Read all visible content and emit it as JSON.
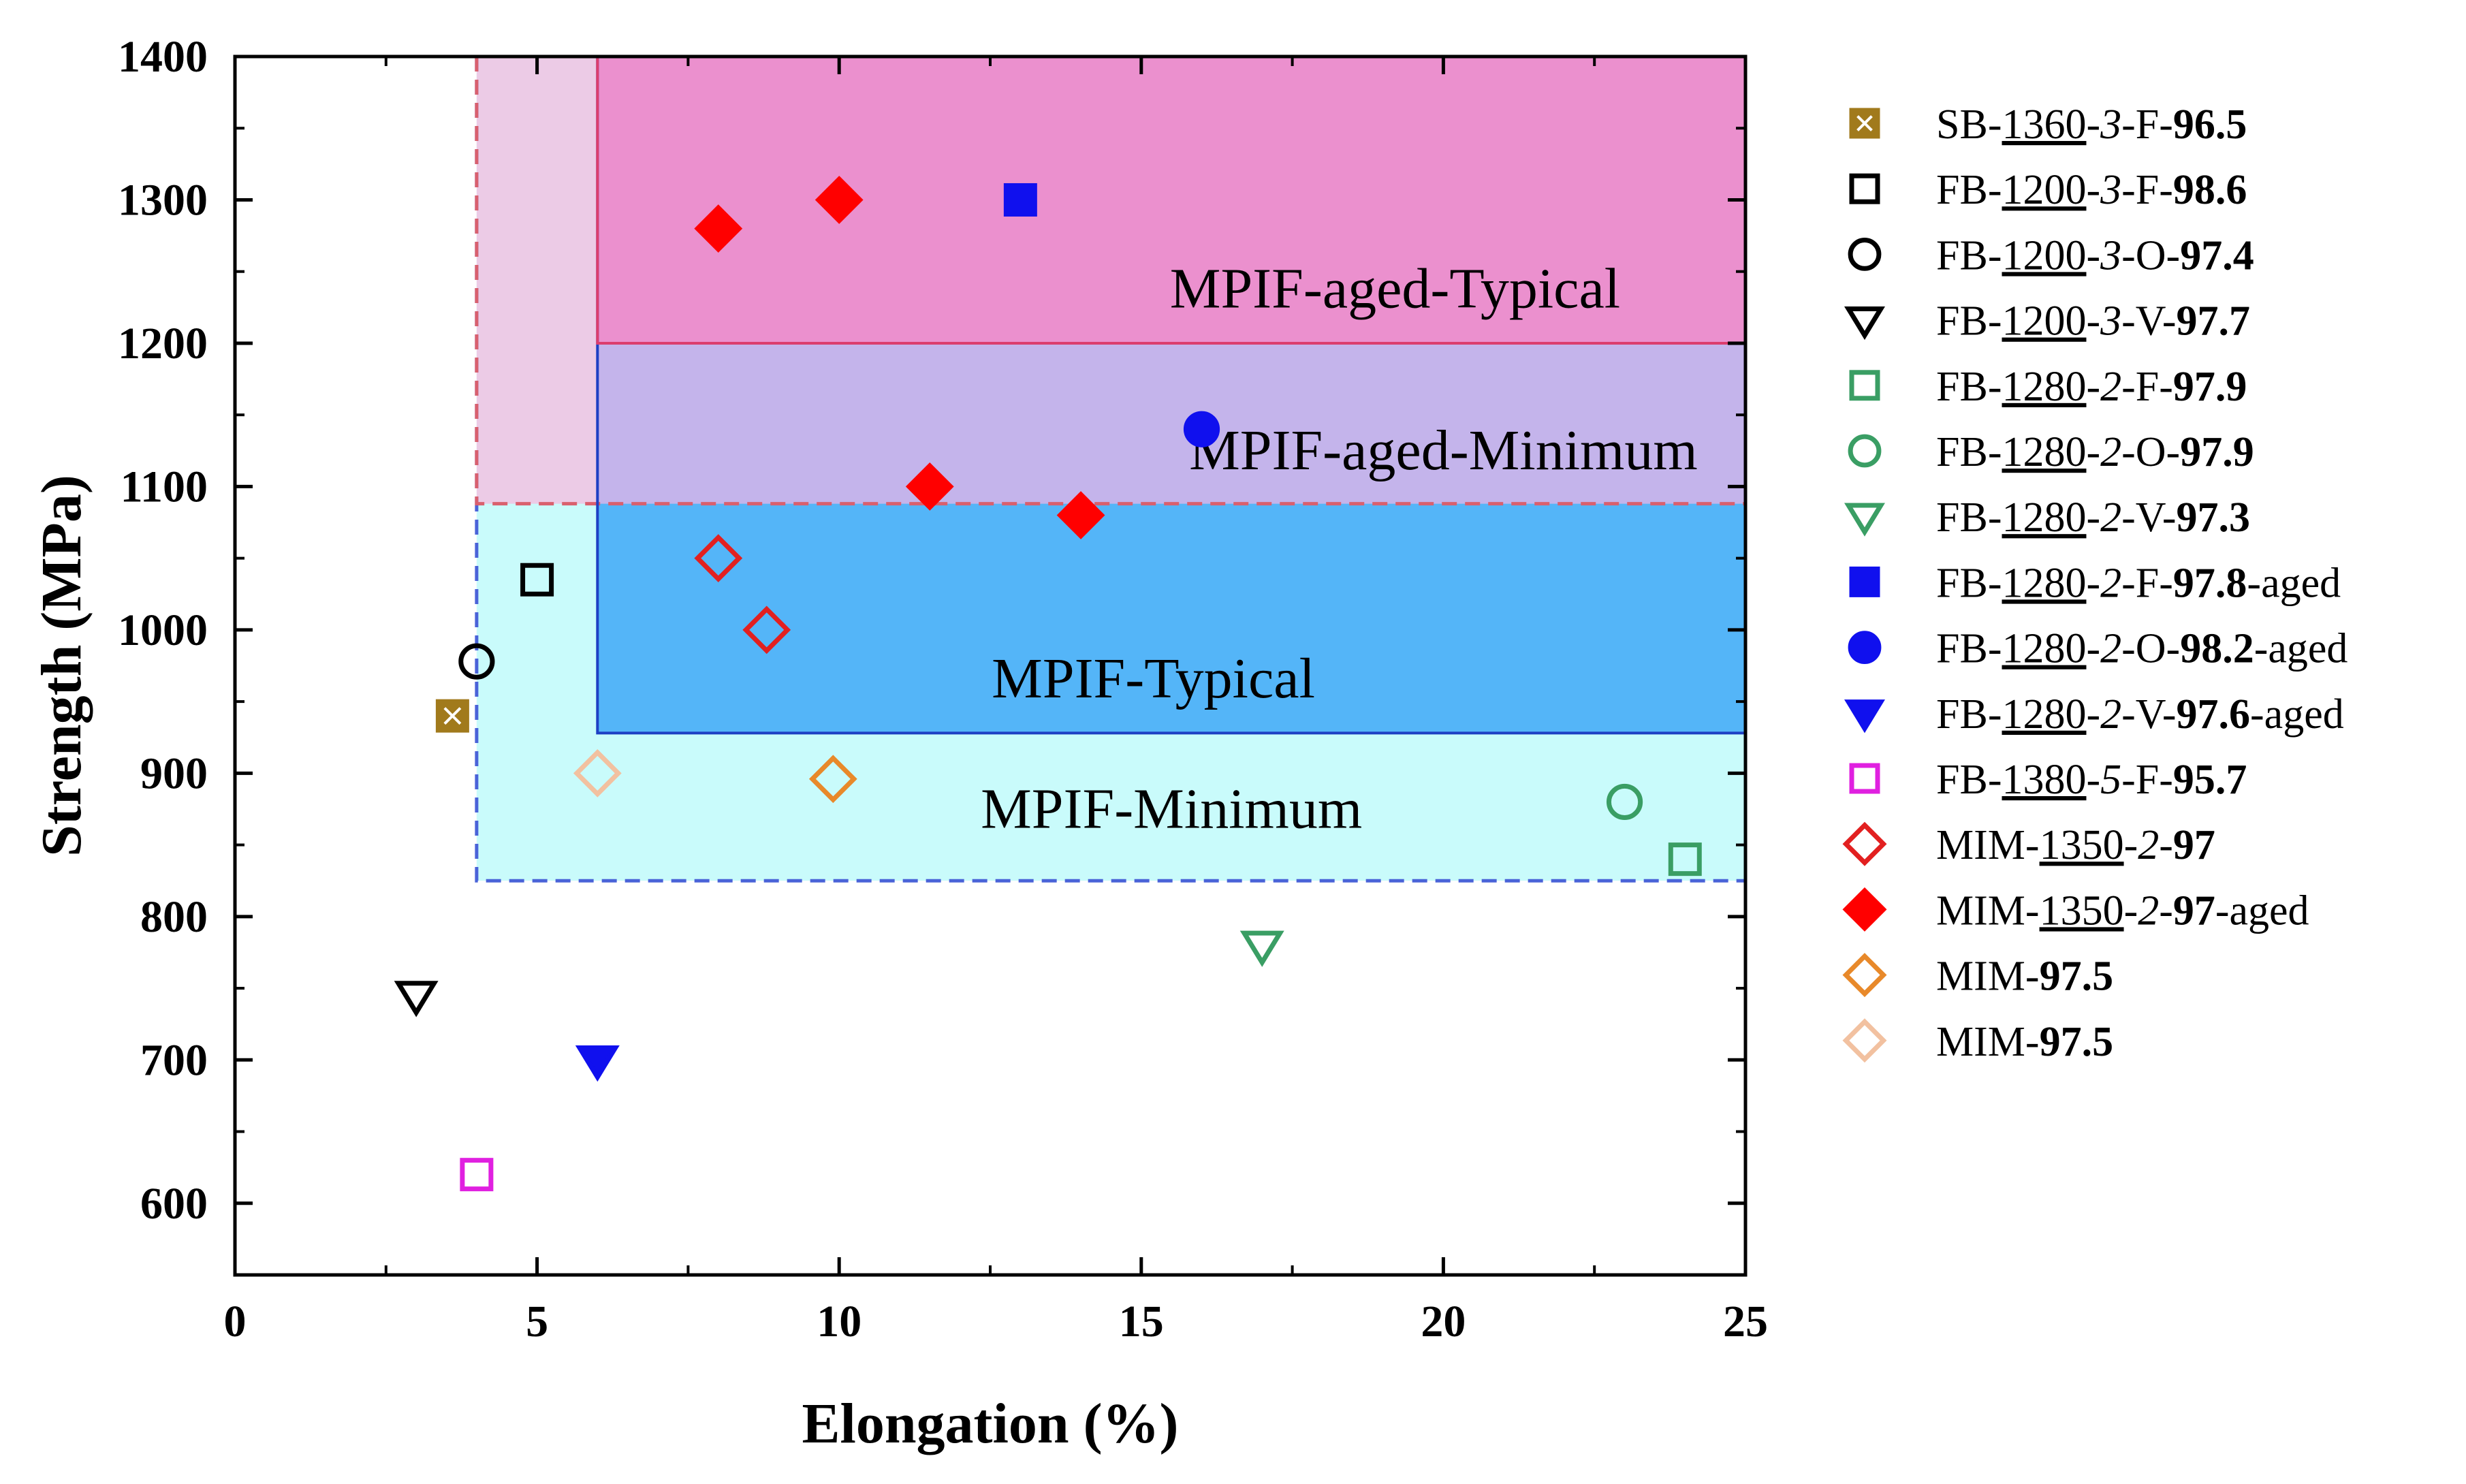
{
  "chart_data": {
    "type": "scatter",
    "xlabel": "Elongation (%)",
    "ylabel": "Strength (MPa)",
    "xlim": [
      0,
      25
    ],
    "ylim": [
      550,
      1400
    ],
    "xticks": [
      0,
      5,
      10,
      15,
      20,
      25
    ],
    "yticks": [
      600,
      700,
      800,
      900,
      1000,
      1100,
      1200,
      1300,
      1400
    ],
    "regions": [
      {
        "name": "MPIF-Minimum",
        "x": [
          4,
          25
        ],
        "y": [
          825,
          1400
        ],
        "fill": "#c9fbfb",
        "stroke": "#4a63d8",
        "dashed": true,
        "label_at": [
          15.5,
          862
        ]
      },
      {
        "name": "MPIF-aged-Minimum",
        "x": [
          4,
          25
        ],
        "y": [
          1088,
          1400
        ],
        "fill": "#eccbe6",
        "stroke": "#d9606e",
        "dashed": true,
        "label_at": [
          20,
          1112
        ]
      },
      {
        "name": "MPIF-Typical",
        "x": [
          6,
          25
        ],
        "y": [
          928,
          1400
        ],
        "fill": "#54b5f8",
        "stroke": "#1d3fc4",
        "dashed": false,
        "label_at": [
          15.2,
          953
        ]
      },
      {
        "name": "MPIF-aged-Typical",
        "x": [
          6,
          25
        ],
        "y": [
          1200,
          1400
        ],
        "fill": "#eb90ce",
        "stroke": "#dc3d6e",
        "dashed": false,
        "label_at": [
          19.2,
          1225
        ]
      }
    ],
    "overlap_fill": "#c4b4eb",
    "series": [
      {
        "name": [
          "SB-",
          "1360",
          "-",
          "3",
          "-F-",
          "96.5",
          ""
        ],
        "marker": "square-x",
        "color": "#a17a1c",
        "filled": true,
        "points": [
          [
            3.6,
            940
          ]
        ]
      },
      {
        "name": [
          "FB-",
          "1200",
          "-",
          "3",
          "-F-",
          "98.6",
          ""
        ],
        "marker": "square",
        "color": "#000000",
        "filled": false,
        "points": [
          [
            5,
            1035
          ]
        ]
      },
      {
        "name": [
          "FB-",
          "1200",
          "-",
          "3",
          "-O-",
          "97.4",
          ""
        ],
        "marker": "circle",
        "color": "#000000",
        "filled": false,
        "points": [
          [
            4,
            978
          ]
        ]
      },
      {
        "name": [
          "FB-",
          "1200",
          "-",
          "3",
          "-V-",
          "97.7",
          ""
        ],
        "marker": "triangle-down",
        "color": "#000000",
        "filled": false,
        "points": [
          [
            3,
            745
          ]
        ]
      },
      {
        "name": [
          "FB-",
          "1280",
          "-",
          "2",
          "-F-",
          "97.9",
          ""
        ],
        "marker": "square",
        "color": "#3a9e64",
        "filled": false,
        "points": [
          [
            24,
            840
          ]
        ]
      },
      {
        "name": [
          "FB-",
          "1280",
          "-",
          "2",
          "-O-",
          "97.9",
          ""
        ],
        "marker": "circle",
        "color": "#3a9e64",
        "filled": false,
        "points": [
          [
            23,
            880
          ]
        ]
      },
      {
        "name": [
          "FB-",
          "1280",
          "-",
          "2",
          "-V-",
          "97.3",
          ""
        ],
        "marker": "triangle-down",
        "color": "#3a9e64",
        "filled": false,
        "points": [
          [
            17,
            780
          ]
        ]
      },
      {
        "name": [
          "FB-",
          "1280",
          "-",
          "2",
          "-F-",
          "97.8",
          "-aged"
        ],
        "marker": "square",
        "color": "#1010ee",
        "filled": true,
        "points": [
          [
            13,
            1300
          ]
        ]
      },
      {
        "name": [
          "FB-",
          "1280",
          "-",
          "2",
          "-O-",
          "98.2",
          "-aged"
        ],
        "marker": "circle",
        "color": "#1010ee",
        "filled": true,
        "points": [
          [
            16,
            1140
          ]
        ]
      },
      {
        "name": [
          "FB-",
          "1280",
          "-",
          "2",
          "-V-",
          "97.6",
          "-aged"
        ],
        "marker": "triangle-down",
        "color": "#1010ee",
        "filled": true,
        "points": [
          [
            6,
            700
          ]
        ]
      },
      {
        "name": [
          "FB-",
          "1380",
          "-",
          "5",
          "-F-",
          "95.7",
          ""
        ],
        "marker": "square",
        "color": "#e020e0",
        "filled": false,
        "points": [
          [
            4,
            620
          ]
        ]
      },
      {
        "name": [
          "MIM-",
          "1350",
          "-",
          "2",
          "-",
          "97",
          ""
        ],
        "marker": "diamond",
        "color": "#e22020",
        "filled": false,
        "points": [
          [
            8,
            1050
          ],
          [
            8.8,
            1000
          ]
        ]
      },
      {
        "name": [
          "MIM-",
          "1350",
          "-",
          "2",
          "-",
          "97",
          "-aged"
        ],
        "marker": "diamond",
        "color": "#ff0000",
        "filled": true,
        "points": [
          [
            8,
            1280
          ],
          [
            10,
            1300
          ],
          [
            11.5,
            1100
          ],
          [
            14,
            1080
          ]
        ]
      },
      {
        "name": [
          "MIM-",
          "",
          "",
          "",
          "",
          "97.5",
          ""
        ],
        "marker": "diamond",
        "color": "#e8892a",
        "filled": false,
        "points": [
          [
            9.9,
            896
          ]
        ]
      },
      {
        "name": [
          "MIM-",
          "",
          "",
          "",
          "",
          "97.5",
          ""
        ],
        "marker": "diamond",
        "color": "#f2c1a0",
        "filled": false,
        "points": [
          [
            6,
            900
          ]
        ]
      }
    ]
  }
}
